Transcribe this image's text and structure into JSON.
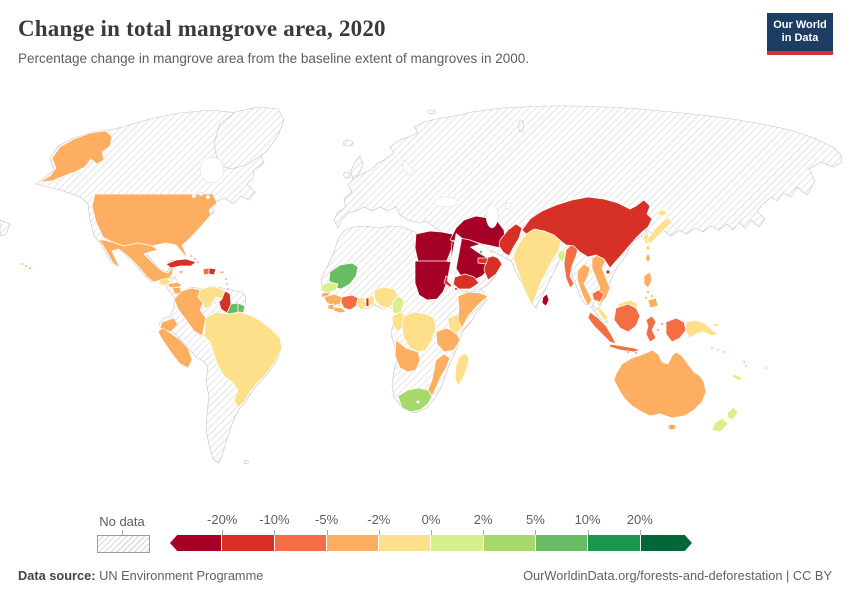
{
  "header": {
    "title": "Change in total mangrove area, 2020",
    "subtitle": "Percentage change in mangrove area from the baseline extent of mangroves in 2000.",
    "logo": {
      "line1": "Our World",
      "line2": "in Data",
      "bg_color": "#1d3d63",
      "stripe_color": "#d0342c"
    }
  },
  "legend": {
    "no_data_label": "No data",
    "tick_labels": [
      "-20%",
      "-10%",
      "-5%",
      "-2%",
      "0%",
      "2%",
      "5%",
      "10%",
      "20%"
    ]
  },
  "footer": {
    "source_label": "Data source:",
    "source_value": "UN Environment Programme",
    "link": "OurWorldinData.org/forests-and-deforestation | CC BY"
  },
  "chart_data": {
    "type": "heatmap",
    "subtype": "choropleth-world-map",
    "title": "Change in total mangrove area, 2020",
    "unit": "%",
    "legend_position": "bottom",
    "bins": [
      {
        "id": "lt-20",
        "label": "less than -20%",
        "color": "#a50026"
      },
      {
        "id": "-20--10",
        "label": "-20% to -10%",
        "color": "#d73027"
      },
      {
        "id": "-10--5",
        "label": "-10% to -5%",
        "color": "#f46d43"
      },
      {
        "id": "-5--2",
        "label": "-5% to -2%",
        "color": "#fdae61"
      },
      {
        "id": "-2-0",
        "label": "-2% to 0%",
        "color": "#fee08b"
      },
      {
        "id": "0-2",
        "label": "0% to 2%",
        "color": "#d9ef8b"
      },
      {
        "id": "2-5",
        "label": "2% to 5%",
        "color": "#a6d96a"
      },
      {
        "id": "5-10",
        "label": "5% to 10%",
        "color": "#66bd63"
      },
      {
        "id": "10-20",
        "label": "10% to 20%",
        "color": "#1a9850"
      },
      {
        "id": "gt20",
        "label": "more than 20%",
        "color": "#006837"
      }
    ],
    "countries": {
      "egypt": "lt-20",
      "sudan": "lt-20",
      "saudi-arabia": "lt-20",
      "iran": "lt-20",
      "sri-lanka": "lt-20",
      "china": "-20--10",
      "pakistan": "-20--10",
      "oman": "-20--10",
      "yemen": "-20--10",
      "united-arab-emirates": "-20--10",
      "eritrea": "-20--10",
      "djibouti": "-20--10",
      "cuba": "-20--10",
      "dominican-republic": "-20--10",
      "guyana": "-20--10",
      "togo": "-20--10",
      "bahamas": "-20--10",
      "trinidad-and-tobago": "-20--10",
      "lesser-antilles": "-20--10",
      "indonesia": "-10--5",
      "myanmar": "-10--5",
      "cote-divoire": "-10--5",
      "haiti": "-10--5",
      "cambodia": "-10--5",
      "united-states": "-5--2",
      "mexico": "-5--2",
      "australia": "-5--2",
      "colombia": "-5--2",
      "ecuador": "-5--2",
      "peru": "-5--2",
      "philippines": "-5--2",
      "thailand": "-5--2",
      "vietnam": "-5--2",
      "angola": "-5--2",
      "tanzania": "-5--2",
      "mozambique": "-5--2",
      "somalia": "-5--2",
      "guinea": "-5--2",
      "guinea-bissau": "-5--2",
      "sierra-leone": "-5--2",
      "liberia": "-5--2",
      "honduras": "-5--2",
      "nicaragua": "-5--2",
      "costa-rica": "-5--2",
      "panama": "-5--2",
      "jamaica": "-5--2",
      "puerto-rico": "-5--2",
      "taiwan": "-5--2",
      "vanuatu": "-5--2",
      "solomon-islands": "-5--2",
      "brazil": "-2-0",
      "venezuela": "-2-0",
      "india": "-2-0",
      "malaysia": "-2-0",
      "papua-new-guinea": "-2-0",
      "japan": "-2-0",
      "south-korea": "-2-0",
      "madagascar": "-2-0",
      "nigeria": "-2-0",
      "benin": "-2-0",
      "ghana": "-2-0",
      "kenya": "-2-0",
      "democratic-republic-of-congo": "-2-0",
      "gabon-congo": "-2-0",
      "guatemala": "-2-0",
      "belize": "-2-0",
      "senegal": "0-2",
      "cameroon": "0-2",
      "bangladesh": "0-2",
      "new-zealand": "0-2",
      "fiji": "0-2",
      "new-caledonia": "0-2",
      "timor-leste": "0-2",
      "south-africa": "2-5",
      "mauritania": "5-10",
      "suriname": "5-10",
      "french-guiana": "5-10",
      "bahrain": "5-10"
    },
    "no_data_regions": [
      "Canada",
      "Greenland",
      "Iceland",
      "United Kingdom",
      "Europe",
      "Russia",
      "Central Asia",
      "Mongolia",
      "Turkey",
      "Iraq",
      "Afghanistan",
      "North Korea",
      "Laos",
      "Ethiopia",
      "North Africa",
      "Mali",
      "Niger",
      "Chad",
      "Zambia",
      "Zimbabwe",
      "Botswana",
      "Namibia",
      "Bolivia",
      "Paraguay",
      "Chile",
      "Argentina",
      "Uruguay"
    ]
  }
}
